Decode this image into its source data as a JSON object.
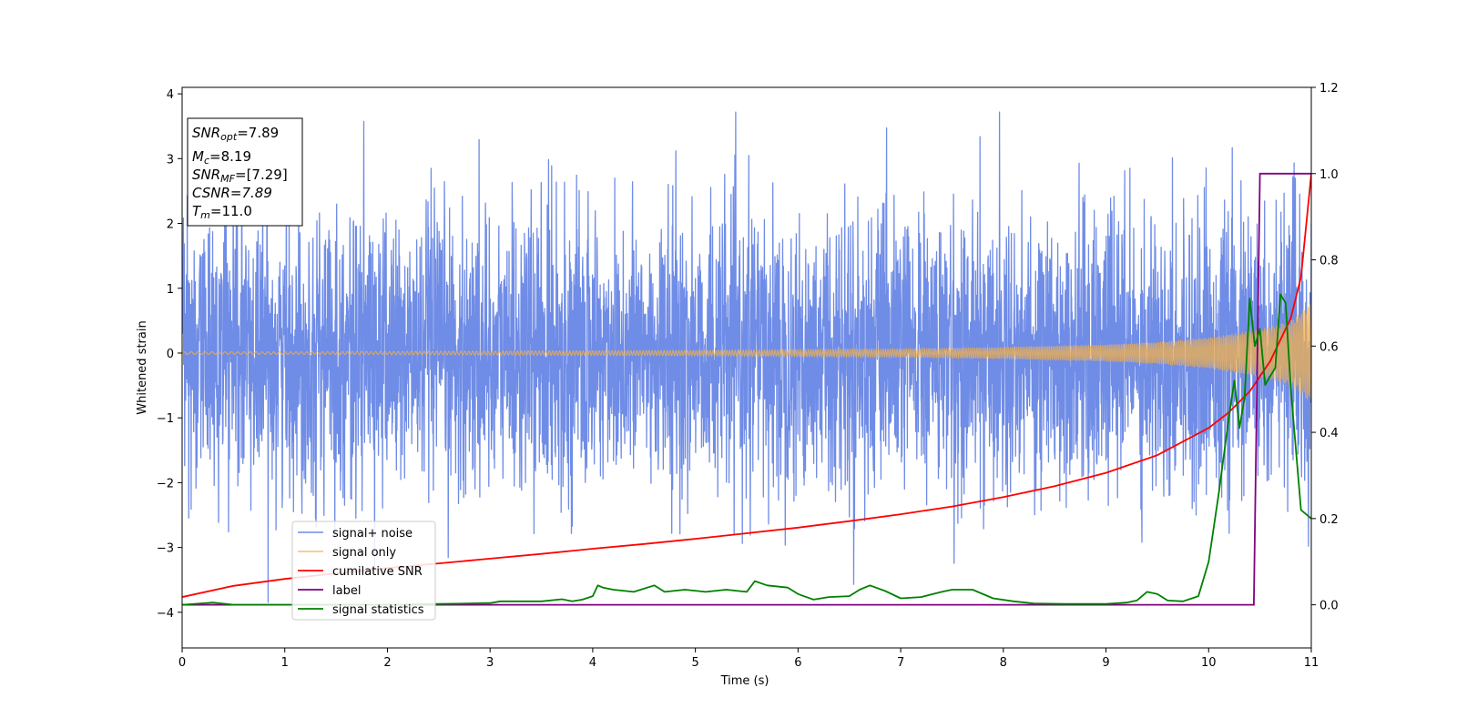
{
  "chart_data": {
    "type": "line",
    "xlabel": "Time (s)",
    "ylabel": "Whitened strain",
    "xlim": [
      0,
      11
    ],
    "ylim": [
      -4.55,
      4.1
    ],
    "y2lim": [
      -0.1,
      1.2
    ],
    "x_ticks": [
      0,
      1,
      2,
      3,
      4,
      5,
      6,
      7,
      8,
      9,
      10,
      11
    ],
    "x_tick_labels": [
      "0",
      "1",
      "2",
      "3",
      "4",
      "5",
      "6",
      "7",
      "8",
      "9",
      "10",
      "11"
    ],
    "y_ticks": [
      -4,
      -3,
      -2,
      -1,
      0,
      1,
      2,
      3,
      4
    ],
    "y_tick_labels": [
      "−4",
      "−3",
      "−2",
      "−1",
      "0",
      "1",
      "2",
      "3",
      "4"
    ],
    "y2_ticks": [
      0.0,
      0.2,
      0.4,
      0.6,
      0.8,
      1.0,
      1.2
    ],
    "y2_tick_labels": [
      "0.0",
      "0.2",
      "0.4",
      "0.6",
      "0.8",
      "1.0",
      "1.2"
    ],
    "legend_position": "lower-left",
    "grid": false,
    "info_box": {
      "snr_opt": {
        "base": "SNR",
        "sub": "opt",
        "value": "=7.89"
      },
      "mc": {
        "base": "M",
        "sub": "c",
        "value": "=8.19"
      },
      "snr_mf": {
        "base": "SNR",
        "sub": "MF",
        "value": "=[7.29]"
      },
      "csnr": {
        "text": "CSNR=7.89"
      },
      "tm": {
        "base": "T",
        "sub": "m",
        "value": "=11.0"
      }
    },
    "series": [
      {
        "name": "signal+ noise",
        "axis": "left",
        "color": "#6f8ce6",
        "note_amplitude_envelope": [
          -4.15,
          3.72
        ]
      },
      {
        "name": "signal only",
        "axis": "left",
        "color": "#f2b04c",
        "envelope_x": [
          0,
          1,
          2,
          3,
          4,
          5,
          6,
          7,
          8,
          9,
          9.5,
          10,
          10.5,
          10.8,
          11
        ],
        "envelope_y": [
          0.02,
          0.02,
          0.025,
          0.03,
          0.035,
          0.04,
          0.05,
          0.065,
          0.09,
          0.13,
          0.17,
          0.24,
          0.37,
          0.5,
          0.78
        ]
      },
      {
        "name": "cumilative SNR",
        "axis": "right",
        "color": "#ff0000",
        "x": [
          0,
          0.5,
          1,
          1.5,
          2,
          2.5,
          3,
          3.5,
          4,
          4.5,
          5,
          5.5,
          6,
          6.5,
          7,
          7.5,
          8,
          8.5,
          9,
          9.5,
          10,
          10.2,
          10.4,
          10.6,
          10.8,
          10.9,
          11
        ],
        "y": [
          0.018,
          0.044,
          0.06,
          0.073,
          0.085,
          0.096,
          0.107,
          0.118,
          0.13,
          0.141,
          0.153,
          0.166,
          0.179,
          0.194,
          0.21,
          0.228,
          0.25,
          0.275,
          0.306,
          0.347,
          0.41,
          0.447,
          0.495,
          0.565,
          0.665,
          0.76,
          1.0
        ]
      },
      {
        "name": "label",
        "axis": "right",
        "color": "#800080",
        "x": [
          0,
          10.44,
          10.5,
          11
        ],
        "y": [
          0,
          0,
          1,
          1
        ]
      },
      {
        "name": "signal statistics",
        "axis": "right",
        "color": "#008000",
        "x": [
          0,
          0.3,
          0.5,
          1,
          1.5,
          2,
          2.5,
          3,
          3.1,
          3.5,
          3.7,
          3.8,
          3.9,
          4.0,
          4.05,
          4.1,
          4.2,
          4.4,
          4.6,
          4.7,
          4.9,
          5.1,
          5.3,
          5.5,
          5.58,
          5.7,
          5.9,
          6.0,
          6.15,
          6.3,
          6.5,
          6.6,
          6.7,
          6.85,
          7.0,
          7.2,
          7.4,
          7.5,
          7.7,
          7.9,
          8.1,
          8.3,
          8.6,
          9.0,
          9.2,
          9.3,
          9.4,
          9.5,
          9.6,
          9.75,
          9.9,
          10.0,
          10.1,
          10.2,
          10.25,
          10.3,
          10.35,
          10.4,
          10.45,
          10.5,
          10.55,
          10.6,
          10.65,
          10.7,
          10.75,
          10.8,
          10.9,
          11
        ],
        "y": [
          0.0,
          0.005,
          0.0,
          0.0,
          0.0,
          0.0,
          0.002,
          0.004,
          0.008,
          0.008,
          0.013,
          0.008,
          0.012,
          0.02,
          0.045,
          0.04,
          0.035,
          0.03,
          0.045,
          0.03,
          0.035,
          0.03,
          0.035,
          0.03,
          0.055,
          0.045,
          0.04,
          0.025,
          0.012,
          0.018,
          0.02,
          0.035,
          0.045,
          0.032,
          0.015,
          0.018,
          0.03,
          0.035,
          0.035,
          0.015,
          0.008,
          0.003,
          0.002,
          0.002,
          0.005,
          0.01,
          0.03,
          0.025,
          0.01,
          0.008,
          0.02,
          0.1,
          0.26,
          0.44,
          0.52,
          0.41,
          0.48,
          0.71,
          0.6,
          0.64,
          0.51,
          0.53,
          0.55,
          0.72,
          0.7,
          0.5,
          0.22,
          0.2
        ]
      }
    ]
  }
}
